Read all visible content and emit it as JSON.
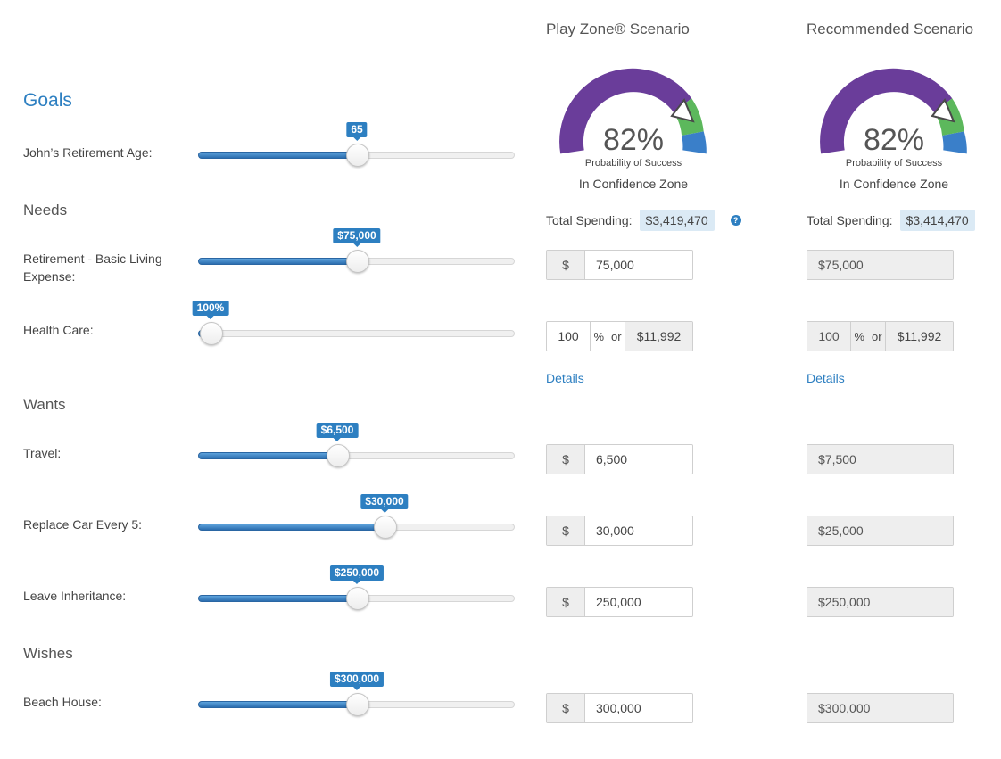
{
  "colors": {
    "accent": "#2d7fc1",
    "gauge_purple": "#6a3d9a",
    "gauge_green": "#5cb85c",
    "gauge_blue": "#3a7fc9"
  },
  "columns": {
    "play_zone_title": "Play Zone® Scenario",
    "recommended_title": "Recommended Scenario"
  },
  "play_zone": {
    "gauge": {
      "percent": "82%",
      "probability_label": "Probability of Success",
      "zone": "In Confidence Zone"
    },
    "total_label": "Total Spending:",
    "total_value": "$3,419,470",
    "help_icon": "question-circle-icon"
  },
  "recommended": {
    "gauge": {
      "percent": "82%",
      "probability_label": "Probability of Success",
      "zone": "In Confidence Zone"
    },
    "total_label": "Total Spending:",
    "total_value": "$3,414,470"
  },
  "sections": {
    "goals": "Goals",
    "needs": "Needs",
    "wants": "Wants",
    "wishes": "Wishes"
  },
  "rows": {
    "retirement_age": {
      "label": "John’s Retirement Age:",
      "bubble": "65",
      "fraction": 0.5
    },
    "basic_living": {
      "label_line1": "Retirement - Basic Living",
      "label_line2": "Expense:",
      "bubble": "$75,000",
      "fraction": 0.5,
      "play_addon": "$",
      "play_value": "75,000",
      "rec_value": "$75,000"
    },
    "health_care": {
      "label": "Health Care:",
      "bubble": "100%",
      "fraction": 0.04,
      "play_pct": "100",
      "pct_sign": "%",
      "or": "or",
      "play_amount": "$11,992",
      "rec_pct": "100",
      "rec_amount": "$11,992",
      "details_link": "Details"
    },
    "travel": {
      "label": "Travel:",
      "bubble": "$6,500",
      "fraction": 0.44,
      "play_addon": "$",
      "play_value": "6,500",
      "rec_value": "$7,500"
    },
    "car": {
      "label": "Replace Car Every 5:",
      "bubble": "$30,000",
      "fraction": 0.59,
      "play_addon": "$",
      "play_value": "30,000",
      "rec_value": "$25,000"
    },
    "inheritance": {
      "label": "Leave Inheritance:",
      "bubble": "$250,000",
      "fraction": 0.5,
      "play_addon": "$",
      "play_value": "250,000",
      "rec_value": "$250,000"
    },
    "beach_house": {
      "label": "Beach House:",
      "bubble": "$300,000",
      "fraction": 0.5,
      "play_addon": "$",
      "play_value": "300,000",
      "rec_value": "$300,000"
    }
  }
}
